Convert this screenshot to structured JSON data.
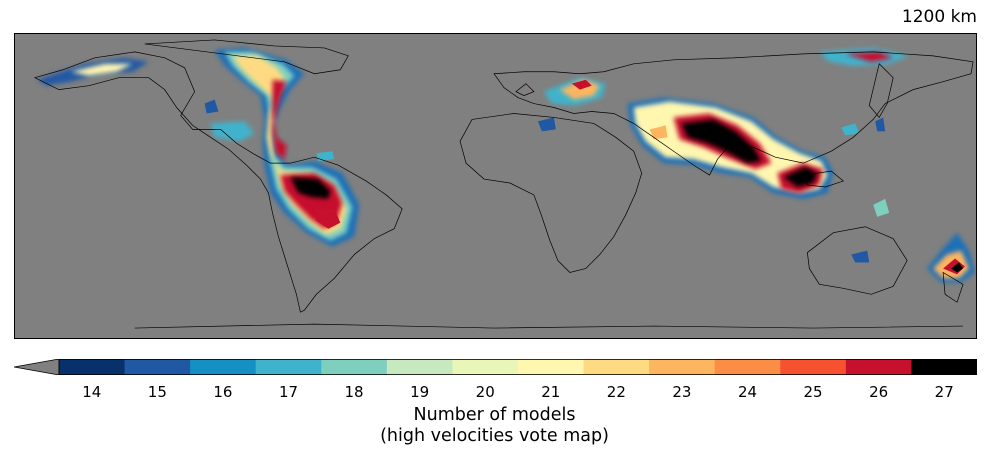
{
  "depth_label": "1200 km",
  "colorbar": {
    "title_line1": "Number of models",
    "title_line2": "(high velocities vote map)",
    "extend": "min",
    "under_color": "#808080",
    "ticks": [
      "14",
      "15",
      "16",
      "17",
      "18",
      "19",
      "20",
      "21",
      "22",
      "23",
      "24",
      "25",
      "26",
      "27"
    ],
    "colors": [
      "#08306b",
      "#2158a4",
      "#1490c4",
      "#3fb3cc",
      "#7fcfbf",
      "#c6e9bf",
      "#e9f6b8",
      "#fff6b0",
      "#fedb82",
      "#fdb560",
      "#fc8d45",
      "#f6522f",
      "#c6102d",
      "#000000"
    ]
  },
  "map": {
    "background_color": "#808080",
    "coastline_color": "#000000"
  }
}
